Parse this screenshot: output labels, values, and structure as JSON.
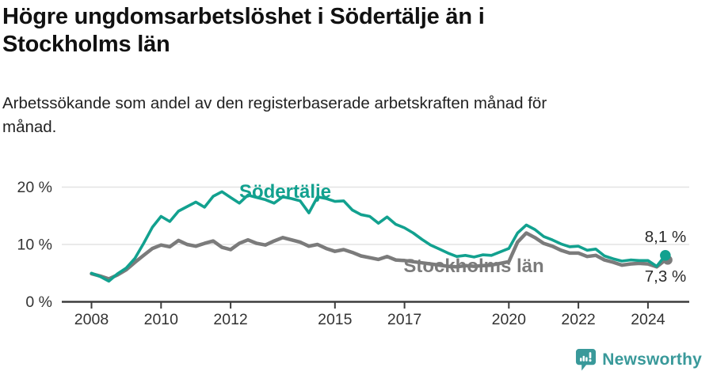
{
  "header": {
    "title_lines": [
      "Högre ungdomsarbetslöshet i Södertälje än i",
      "Stockholms län"
    ],
    "subtitle_lines": [
      "Arbetssökande som andel av den registerbaserade arbetskraften månad för",
      "månad."
    ]
  },
  "footer": {
    "brand": "Newsworthy",
    "brand_color": "#39999a",
    "logo_icon": "speech-bubble-bar-chart-icon"
  },
  "colors": {
    "background": "#ffffff",
    "title_text": "#111111",
    "axis_text": "#333333",
    "axis_line": "#3d3d3d",
    "gridline": "#e3e3e3",
    "sodertalje": "#12a18f",
    "stockholms_lan": "#7b7b7b",
    "value_label_text": "#2b2b2b"
  },
  "chart_data": {
    "type": "line",
    "title": "Högre ungdomsarbetslöshet i Södertälje än i Stockholms län",
    "subtitle": "Arbetssökande som andel av den registerbaserade arbetskraften månad för månad.",
    "xlabel": "",
    "ylabel": "",
    "x_unit": "year (decimal, values estimated from plot)",
    "xlim": [
      2007.1,
      2025.1
    ],
    "ylim": [
      0,
      21.5
    ],
    "grid": "horizontal-only",
    "legend_position": "inline-labels-on-chart",
    "yticks": [
      {
        "v": 0,
        "label": "0 %"
      },
      {
        "v": 10,
        "label": "10 %"
      },
      {
        "v": 20,
        "label": "20 %"
      }
    ],
    "xticks": [
      {
        "v": 2008,
        "label": "2008"
      },
      {
        "v": 2010,
        "label": "2010"
      },
      {
        "v": 2012,
        "label": "2012"
      },
      {
        "v": 2015,
        "label": "2015"
      },
      {
        "v": 2017,
        "label": "2017"
      },
      {
        "v": 2020,
        "label": "2020"
      },
      {
        "v": 2022,
        "label": "2022"
      },
      {
        "v": 2024,
        "label": "2024"
      }
    ],
    "x": [
      2008.0,
      2008.25,
      2008.5,
      2008.75,
      2009.0,
      2009.25,
      2009.5,
      2009.75,
      2010.0,
      2010.25,
      2010.5,
      2010.75,
      2011.0,
      2011.25,
      2011.5,
      2011.75,
      2012.0,
      2012.25,
      2012.5,
      2012.75,
      2013.0,
      2013.25,
      2013.5,
      2013.75,
      2014.0,
      2014.25,
      2014.5,
      2014.75,
      2015.0,
      2015.25,
      2015.5,
      2015.75,
      2016.0,
      2016.25,
      2016.5,
      2016.75,
      2017.0,
      2017.25,
      2017.5,
      2017.75,
      2018.0,
      2018.25,
      2018.5,
      2018.75,
      2019.0,
      2019.25,
      2019.5,
      2019.75,
      2020.0,
      2020.25,
      2020.5,
      2020.75,
      2021.0,
      2021.25,
      2021.5,
      2021.75,
      2022.0,
      2022.25,
      2022.5,
      2022.75,
      2023.0,
      2023.25,
      2023.5,
      2023.75,
      2024.0,
      2024.25,
      2024.5
    ],
    "series": [
      {
        "name": "Södertälje",
        "color": "#12a18f",
        "end_label": "8,1 %",
        "end_value": 8.1,
        "values": [
          5.0,
          4.4,
          3.6,
          4.9,
          5.9,
          7.6,
          10.2,
          13.0,
          14.9,
          14.0,
          15.8,
          16.6,
          17.4,
          16.5,
          18.4,
          19.2,
          18.2,
          17.2,
          18.6,
          18.2,
          17.8,
          17.2,
          18.3,
          18.0,
          17.6,
          15.5,
          18.3,
          18.0,
          17.5,
          17.6,
          16.0,
          15.2,
          14.9,
          13.7,
          14.8,
          13.5,
          12.9,
          12.0,
          10.9,
          9.9,
          9.2,
          8.5,
          7.9,
          8.1,
          7.8,
          8.2,
          8.1,
          8.7,
          9.3,
          12.0,
          13.4,
          12.6,
          11.4,
          10.8,
          10.1,
          9.6,
          9.7,
          9.0,
          9.2,
          8.0,
          7.5,
          7.1,
          7.3,
          7.2,
          7.2,
          6.2,
          8.1
        ]
      },
      {
        "name": "Stockholms län",
        "color": "#7b7b7b",
        "end_label": "7,3 %",
        "end_value": 7.3,
        "values": [
          4.9,
          4.5,
          4.0,
          4.7,
          5.6,
          6.9,
          8.1,
          9.3,
          9.9,
          9.6,
          10.7,
          10.0,
          9.7,
          10.2,
          10.6,
          9.5,
          9.1,
          10.2,
          10.8,
          10.2,
          9.9,
          10.6,
          11.2,
          10.8,
          10.4,
          9.7,
          10.0,
          9.3,
          8.8,
          9.1,
          8.6,
          8.0,
          7.7,
          7.4,
          7.9,
          7.3,
          7.2,
          7.0,
          6.8,
          6.6,
          6.4,
          6.2,
          6.1,
          6.3,
          6.2,
          6.3,
          6.4,
          6.7,
          7.0,
          10.4,
          12.0,
          11.2,
          10.2,
          9.7,
          9.0,
          8.5,
          8.5,
          7.9,
          8.1,
          7.3,
          6.9,
          6.4,
          6.6,
          6.7,
          6.6,
          6.1,
          7.3
        ]
      }
    ]
  }
}
